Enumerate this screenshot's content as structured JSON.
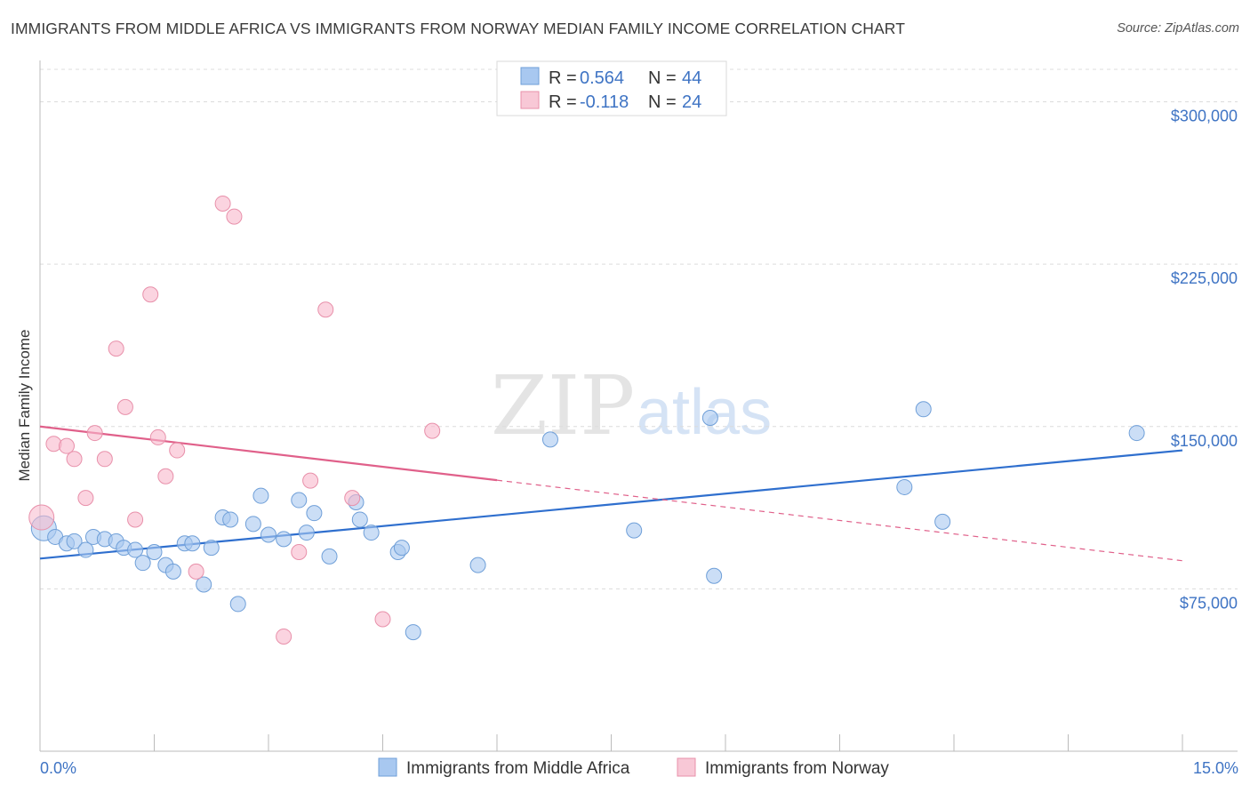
{
  "header": {
    "title": "IMMIGRANTS FROM MIDDLE AFRICA VS IMMIGRANTS FROM NORWAY MEDIAN FAMILY INCOME CORRELATION CHART",
    "source": "Source: ZipAtlas.com"
  },
  "watermark": {
    "zip": "ZIP",
    "atlas": "atlas"
  },
  "legend": {
    "rows": [
      {
        "r_label": "R =",
        "r_value": "0.564",
        "n_label": "N =",
        "n_value": "44",
        "color": "#a8c8f0"
      },
      {
        "r_label": "R =",
        "r_value": "-0.118",
        "n_label": "N =",
        "n_value": "24",
        "color": "#f8b8cc"
      }
    ]
  },
  "chart_data": {
    "type": "scatter",
    "xlabel": "",
    "ylabel": "Median Family Income",
    "xlim": [
      0,
      15
    ],
    "ylim": [
      0,
      315000
    ],
    "x_tick_labels": [
      "0.0%",
      "15.0%"
    ],
    "y_ticks": [
      75000,
      150000,
      225000,
      300000
    ],
    "y_tick_labels": [
      "$75,000",
      "$150,000",
      "$225,000",
      "$300,000"
    ],
    "grid": true,
    "legend_position": "bottom",
    "series": [
      {
        "name": "Immigrants from Middle Africa",
        "color": "#a8c8f0",
        "stroke": "#6f9fd8",
        "trend_color": "#2f6fce",
        "trend": {
          "x": [
            0,
            15
          ],
          "y": [
            89000,
            139000
          ],
          "dashed_from": null
        },
        "points": [
          [
            0.05,
            103000
          ],
          [
            0.2,
            99000
          ],
          [
            0.35,
            96000
          ],
          [
            0.45,
            97000
          ],
          [
            0.6,
            93000
          ],
          [
            0.7,
            99000
          ],
          [
            0.85,
            98000
          ],
          [
            1.0,
            97000
          ],
          [
            1.1,
            94000
          ],
          [
            1.25,
            93000
          ],
          [
            1.35,
            87000
          ],
          [
            1.5,
            92000
          ],
          [
            1.65,
            86000
          ],
          [
            1.75,
            83000
          ],
          [
            1.9,
            96000
          ],
          [
            2.0,
            96000
          ],
          [
            2.15,
            77000
          ],
          [
            2.25,
            94000
          ],
          [
            2.4,
            108000
          ],
          [
            2.5,
            107000
          ],
          [
            2.6,
            68000
          ],
          [
            2.8,
            105000
          ],
          [
            2.9,
            118000
          ],
          [
            3.0,
            100000
          ],
          [
            3.2,
            98000
          ],
          [
            3.4,
            116000
          ],
          [
            3.5,
            101000
          ],
          [
            3.6,
            110000
          ],
          [
            3.8,
            90000
          ],
          [
            4.15,
            115000
          ],
          [
            4.2,
            107000
          ],
          [
            4.35,
            101000
          ],
          [
            4.7,
            92000
          ],
          [
            4.75,
            94000
          ],
          [
            4.9,
            55000
          ],
          [
            5.75,
            86000
          ],
          [
            6.7,
            144000
          ],
          [
            7.8,
            102000
          ],
          [
            8.8,
            154000
          ],
          [
            8.85,
            81000
          ],
          [
            11.35,
            122000
          ],
          [
            11.85,
            106000
          ],
          [
            11.6,
            158000
          ],
          [
            14.4,
            147000
          ]
        ]
      },
      {
        "name": "Immigrants from Norway",
        "color": "#f8b8cc",
        "stroke": "#e890aa",
        "trend_color": "#e0608a",
        "trend": {
          "x": [
            0,
            15
          ],
          "y": [
            150000,
            88000
          ],
          "solid_until": 6
        },
        "points": [
          [
            0.02,
            108000
          ],
          [
            0.18,
            142000
          ],
          [
            0.35,
            141000
          ],
          [
            0.45,
            135000
          ],
          [
            0.6,
            117000
          ],
          [
            0.72,
            147000
          ],
          [
            0.85,
            135000
          ],
          [
            1.0,
            186000
          ],
          [
            1.12,
            159000
          ],
          [
            1.25,
            107000
          ],
          [
            1.45,
            211000
          ],
          [
            1.55,
            145000
          ],
          [
            1.65,
            127000
          ],
          [
            1.8,
            139000
          ],
          [
            2.05,
            83000
          ],
          [
            2.4,
            253000
          ],
          [
            2.55,
            247000
          ],
          [
            3.2,
            53000
          ],
          [
            3.4,
            92000
          ],
          [
            3.55,
            125000
          ],
          [
            3.75,
            204000
          ],
          [
            4.1,
            117000
          ],
          [
            4.5,
            61000
          ],
          [
            5.15,
            148000
          ]
        ]
      }
    ]
  }
}
